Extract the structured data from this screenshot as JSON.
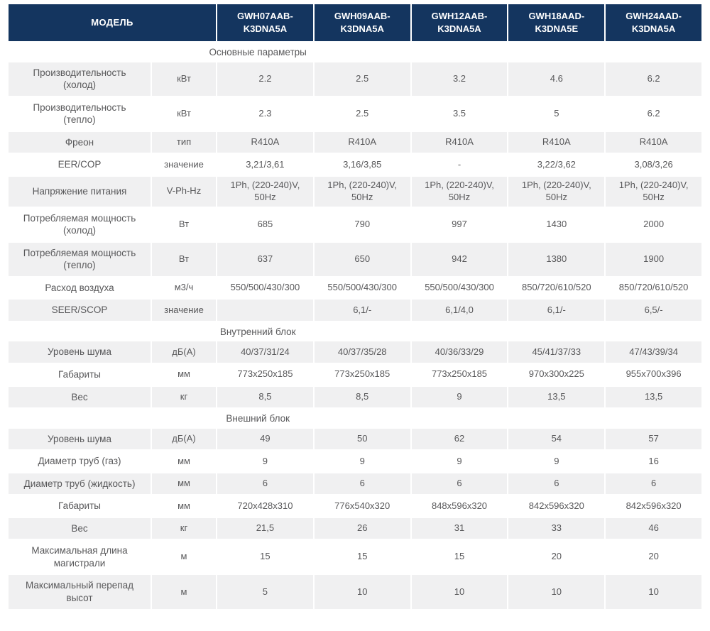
{
  "header": {
    "model_label": "МОДЕЛЬ",
    "models": [
      "GWH07AAB-K3DNA5A",
      "GWH09AAB-K3DNA5A",
      "GWH12AAB-K3DNA5A",
      "GWH18AAD-K3DNA5E",
      "GWH24AAD-K3DNA5A"
    ]
  },
  "sections": [
    {
      "title": "Основные параметры",
      "rows": [
        {
          "param": "Производительность (холод)",
          "unit": "кВт",
          "values": [
            "2.2",
            "2.5",
            "3.2",
            "4.6",
            "6.2"
          ]
        },
        {
          "param": "Производительность (тепло)",
          "unit": "кВт",
          "values": [
            "2.3",
            "2.5",
            "3.5",
            "5",
            "6.2"
          ]
        },
        {
          "param": "Фреон",
          "unit": "тип",
          "values": [
            "R410A",
            "R410A",
            "R410A",
            "R410A",
            "R410A"
          ]
        },
        {
          "param": "EER/COP",
          "unit": "значение",
          "values": [
            "3,21/3,61",
            "3,16/3,85",
            "-",
            "3,22/3,62",
            "3,08/3,26"
          ]
        },
        {
          "param": "Напряжение питания",
          "unit": "V-Ph-Hz",
          "values": [
            "1Ph, (220-240)V, 50Hz",
            "1Ph, (220-240)V, 50Hz",
            "1Ph, (220-240)V, 50Hz",
            "1Ph, (220-240)V, 50Hz",
            "1Ph, (220-240)V, 50Hz"
          ]
        },
        {
          "param": "Потребляемая мощность (холод)",
          "unit": "Вт",
          "values": [
            "685",
            "790",
            "997",
            "1430",
            "2000"
          ]
        },
        {
          "param": "Потребляемая мощность (тепло)",
          "unit": "Вт",
          "values": [
            "637",
            "650",
            "942",
            "1380",
            "1900"
          ]
        },
        {
          "param": "Расход воздуха",
          "unit": "м3/ч",
          "values": [
            "550/500/430/300",
            "550/500/430/300",
            "550/500/430/300",
            "850/720/610/520",
            "850/720/610/520"
          ]
        },
        {
          "param": "SEER/SCOP",
          "unit": "значение",
          "values": [
            "",
            "6,1/-",
            "6,1/4,0",
            "6,1/-",
            "6,5/-"
          ]
        }
      ]
    },
    {
      "title": "Внутренний блок",
      "rows": [
        {
          "param": "Уровень шума",
          "unit": "дБ(А)",
          "values": [
            "40/37/31/24",
            "40/37/35/28",
            "40/36/33/29",
            "45/41/37/33",
            "47/43/39/34"
          ]
        },
        {
          "param": "Габариты",
          "unit": "мм",
          "values": [
            "773x250x185",
            "773x250x185",
            "773x250x185",
            "970x300x225",
            "955x700x396"
          ]
        },
        {
          "param": "Вес",
          "unit": "кг",
          "values": [
            "8,5",
            "8,5",
            "9",
            "13,5",
            "13,5"
          ]
        }
      ]
    },
    {
      "title": "Внешний блок",
      "rows": [
        {
          "param": "Уровень шума",
          "unit": "дБ(А)",
          "values": [
            "49",
            "50",
            "62",
            "54",
            "57"
          ]
        },
        {
          "param": "Диаметр труб (газ)",
          "unit": "мм",
          "values": [
            "9",
            "9",
            "9",
            "9",
            "16"
          ]
        },
        {
          "param": "Диаметр труб (жидкость)",
          "unit": "мм",
          "values": [
            "6",
            "6",
            "6",
            "6",
            "6"
          ]
        },
        {
          "param": "Габариты",
          "unit": "мм",
          "values": [
            "720x428x310",
            "776x540x320",
            "848x596x320",
            "842x596x320",
            "842x596x320"
          ]
        },
        {
          "param": "Вес",
          "unit": "кг",
          "values": [
            "21,5",
            "26",
            "31",
            "33",
            "46"
          ]
        },
        {
          "param": "Максимальная длина магистрали",
          "unit": "м",
          "values": [
            "15",
            "15",
            "15",
            "20",
            "20"
          ]
        },
        {
          "param": "Максимальный перепад высот",
          "unit": "м",
          "values": [
            "5",
            "10",
            "10",
            "10",
            "10"
          ]
        }
      ]
    }
  ],
  "colors": {
    "header_bg": "#14355f",
    "header_text": "#ffffff",
    "row_alt_bg": "#f0f0f1",
    "body_text": "#58585a"
  }
}
